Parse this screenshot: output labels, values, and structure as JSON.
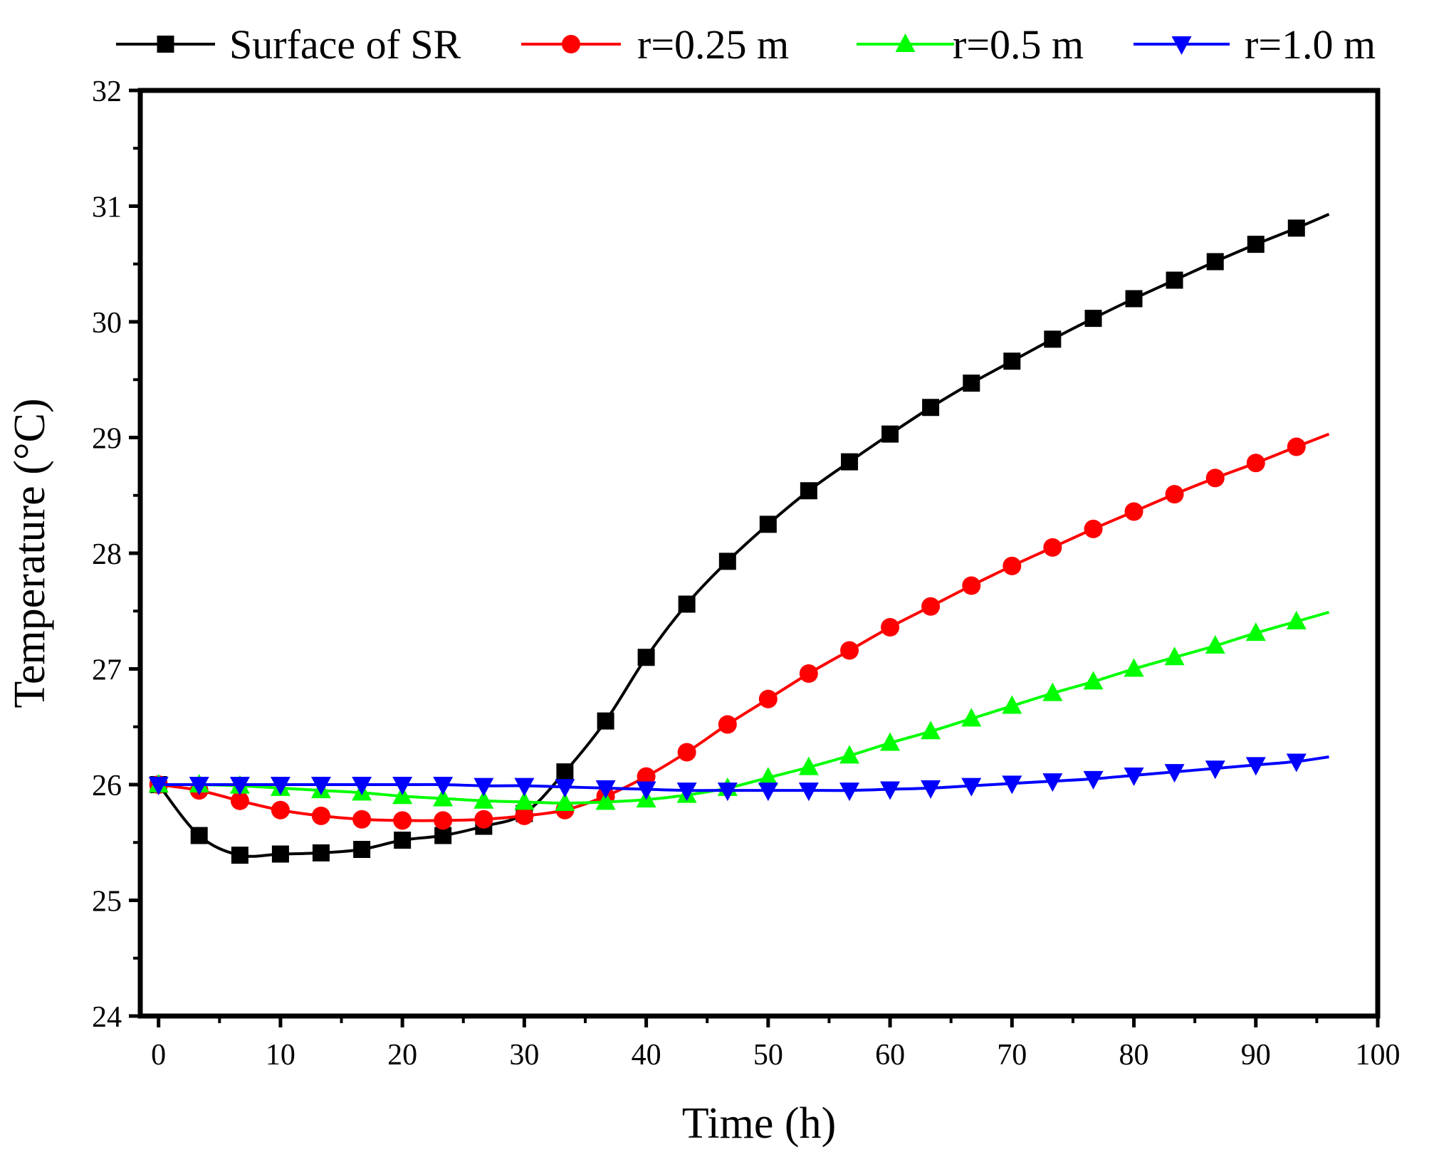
{
  "chart_data": {
    "type": "line",
    "title": "",
    "xlabel": "Time (h)",
    "ylabel": "Temperature (°C)",
    "xlim": [
      -1.5,
      100
    ],
    "ylim": [
      24,
      32
    ],
    "xticks": [
      0,
      10,
      20,
      30,
      40,
      50,
      60,
      70,
      80,
      90,
      100
    ],
    "xtick_labels": [
      "0",
      "10",
      "20",
      "30",
      "40",
      "50",
      "60",
      "70",
      "80",
      "90",
      "100"
    ],
    "yticks": [
      24,
      25,
      26,
      27,
      28,
      29,
      30,
      31,
      32
    ],
    "ytick_labels": [
      "24",
      "25",
      "26",
      "27",
      "28",
      "29",
      "30",
      "31",
      "32"
    ],
    "grid": false,
    "legend_position": "top",
    "x": [
      0,
      3.33,
      6.67,
      10,
      13.33,
      16.67,
      20,
      23.33,
      26.67,
      30,
      33.33,
      36.67,
      40,
      43.33,
      46.67,
      50,
      53.33,
      56.67,
      60,
      63.33,
      66.67,
      70,
      73.33,
      76.67,
      80,
      83.33,
      86.67,
      90,
      93.33,
      96
    ],
    "series": [
      {
        "name": "Surface of SR",
        "color": "#000000",
        "marker": "square",
        "values": [
          26.0,
          25.56,
          25.39,
          25.4,
          25.41,
          25.44,
          25.52,
          25.56,
          25.64,
          25.75,
          26.11,
          26.55,
          27.1,
          27.56,
          27.93,
          28.25,
          28.54,
          28.79,
          29.03,
          29.26,
          29.47,
          29.66,
          29.85,
          30.03,
          30.2,
          30.36,
          30.52,
          30.67,
          30.81,
          30.93
        ]
      },
      {
        "name": "r=0.25 m",
        "color": "#ff0000",
        "marker": "circle",
        "values": [
          26.0,
          25.95,
          25.86,
          25.78,
          25.73,
          25.7,
          25.69,
          25.69,
          25.7,
          25.73,
          25.78,
          25.9,
          26.07,
          26.28,
          26.52,
          26.74,
          26.96,
          27.16,
          27.36,
          27.54,
          27.72,
          27.89,
          28.05,
          28.21,
          28.36,
          28.51,
          28.65,
          28.78,
          28.92,
          29.03
        ]
      },
      {
        "name": "r=0.5 m",
        "color": "#00ff00",
        "marker": "triangle-up",
        "values": [
          26.0,
          26.0,
          25.99,
          25.97,
          25.95,
          25.93,
          25.9,
          25.88,
          25.86,
          25.85,
          25.84,
          25.85,
          25.87,
          25.91,
          25.97,
          26.06,
          26.15,
          26.25,
          26.36,
          26.46,
          26.57,
          26.68,
          26.79,
          26.89,
          27.0,
          27.1,
          27.2,
          27.31,
          27.41,
          27.49
        ]
      },
      {
        "name": "r=1.0 m",
        "color": "#0000ff",
        "marker": "triangle-down",
        "values": [
          26.0,
          26.0,
          26.0,
          26.0,
          26.0,
          26.0,
          26.0,
          26.0,
          25.99,
          25.99,
          25.98,
          25.97,
          25.96,
          25.95,
          25.95,
          25.95,
          25.95,
          25.95,
          25.96,
          25.97,
          25.99,
          26.01,
          26.03,
          26.05,
          26.08,
          26.11,
          26.14,
          26.17,
          26.2,
          26.24
        ]
      }
    ]
  }
}
